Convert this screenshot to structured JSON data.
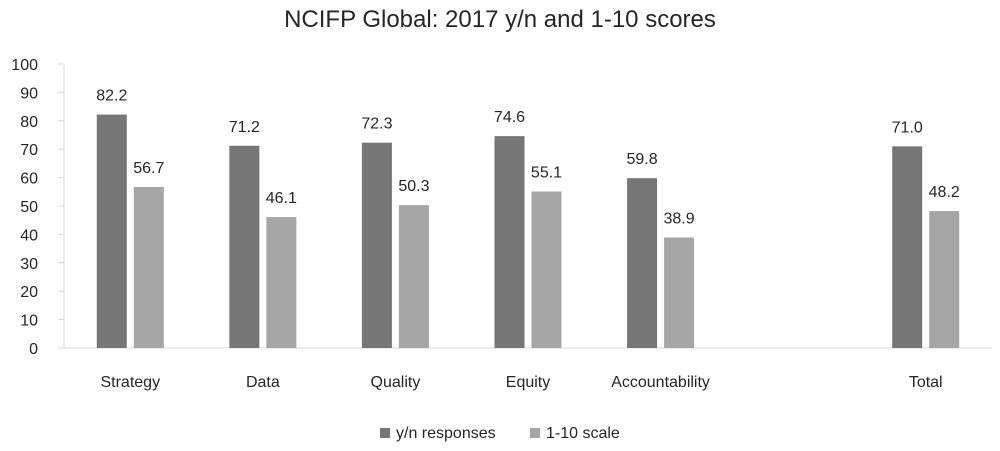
{
  "chart_data": {
    "type": "bar",
    "title": "NCIFP Global: 2017 y/n and 1-10 scores",
    "xlabel": "",
    "ylabel": "",
    "categories": [
      "Strategy",
      "Data",
      "Quality",
      "Equity",
      "Accountability",
      "",
      "Total"
    ],
    "series": [
      {
        "name": "y/n responses",
        "color": "#767676",
        "values": [
          82.2,
          71.2,
          72.3,
          74.6,
          59.8,
          null,
          71.0
        ],
        "labels": [
          "82.2",
          "71.2",
          "72.3",
          "74.6",
          "59.8",
          "",
          "71.0"
        ]
      },
      {
        "name": "1-10 scale",
        "color": "#a5a5a5",
        "values": [
          56.7,
          46.1,
          50.3,
          55.1,
          38.9,
          null,
          48.2
        ],
        "labels": [
          "56.7",
          "46.1",
          "50.3",
          "55.1",
          "38.9",
          "",
          "48.2"
        ]
      }
    ],
    "ylim": [
      0,
      100
    ],
    "yticks": [
      "0",
      "10",
      "20",
      "30",
      "40",
      "50",
      "60",
      "70",
      "80",
      "90",
      "100"
    ],
    "grid": false,
    "legend_position": "bottom",
    "data_labels": true
  }
}
